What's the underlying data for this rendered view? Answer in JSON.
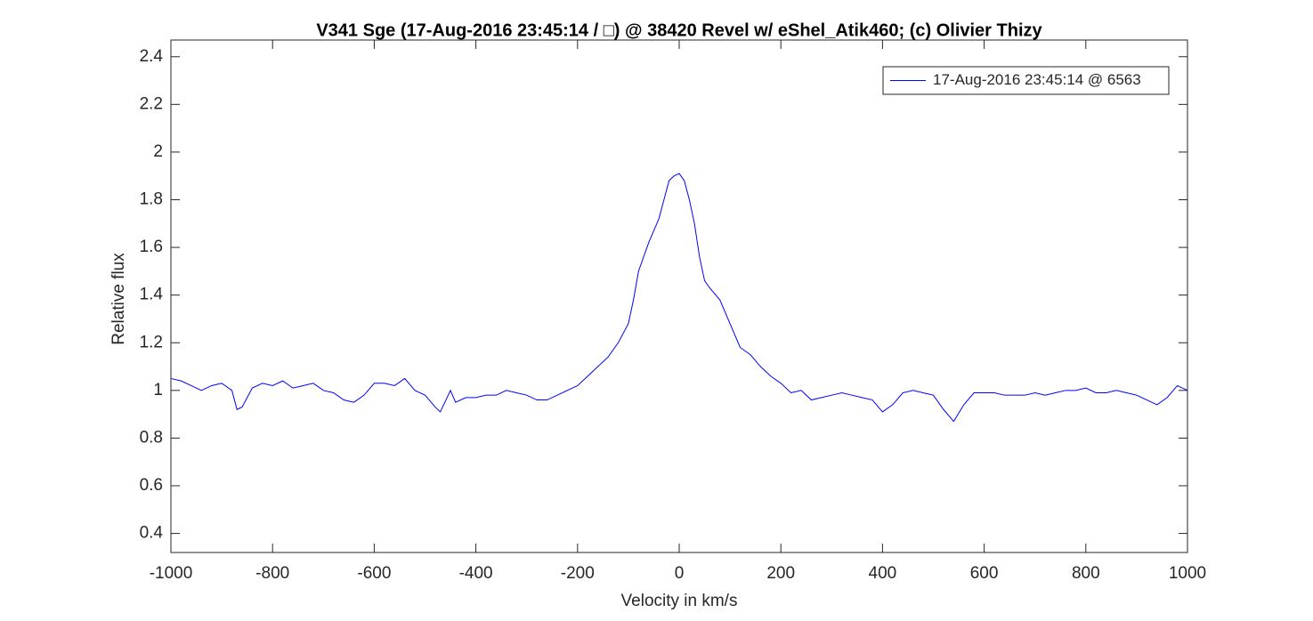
{
  "chart_data": {
    "type": "line",
    "title": "V341 Sge (17-Aug-2016 23:45:14 / □) @ 38420 Revel w/ eShel_Atik460; (c) Olivier Thizy",
    "x_label": "Velocity in km/s",
    "y_label": "Relative flux",
    "xlim": [
      -1000,
      1000
    ],
    "ylim": [
      0.32,
      2.47
    ],
    "xticks": [
      -1000,
      -800,
      -600,
      -400,
      -200,
      0,
      200,
      400,
      600,
      800,
      1000
    ],
    "yticks": [
      0.4,
      0.6,
      0.8,
      1,
      1.2,
      1.4,
      1.6,
      1.8,
      2,
      2.2,
      2.4
    ],
    "grid": false,
    "legend": "top-right",
    "x": [
      -1000,
      -980,
      -960,
      -940,
      -920,
      -900,
      -880,
      -870,
      -860,
      -840,
      -820,
      -800,
      -780,
      -760,
      -740,
      -720,
      -700,
      -680,
      -660,
      -640,
      -620,
      -600,
      -580,
      -560,
      -540,
      -520,
      -500,
      -480,
      -470,
      -450,
      -440,
      -420,
      -400,
      -380,
      -360,
      -340,
      -320,
      -300,
      -280,
      -260,
      -240,
      -220,
      -200,
      -180,
      -160,
      -140,
      -120,
      -100,
      -90,
      -80,
      -60,
      -40,
      -30,
      -20,
      -10,
      0,
      10,
      20,
      30,
      40,
      50,
      60,
      80,
      100,
      120,
      140,
      160,
      180,
      200,
      220,
      240,
      260,
      280,
      300,
      320,
      340,
      360,
      380,
      400,
      420,
      440,
      460,
      480,
      500,
      520,
      540,
      560,
      580,
      600,
      620,
      640,
      660,
      680,
      700,
      720,
      740,
      760,
      780,
      800,
      820,
      840,
      860,
      880,
      900,
      920,
      940,
      960,
      980,
      1000
    ],
    "series": [
      {
        "name": "17-Aug-2016 23:45:14 @ 6563",
        "color": "#0000ff",
        "values": [
          1.05,
          1.04,
          1.02,
          1.0,
          1.02,
          1.03,
          1.0,
          0.92,
          0.93,
          1.01,
          1.03,
          1.02,
          1.04,
          1.01,
          1.02,
          1.03,
          1.0,
          0.99,
          0.96,
          0.95,
          0.98,
          1.03,
          1.03,
          1.02,
          1.05,
          1.0,
          0.98,
          0.93,
          0.91,
          1.0,
          0.95,
          0.97,
          0.97,
          0.98,
          0.98,
          1.0,
          0.99,
          0.98,
          0.96,
          0.96,
          0.98,
          1.0,
          1.02,
          1.06,
          1.1,
          1.14,
          1.2,
          1.28,
          1.38,
          1.5,
          1.62,
          1.72,
          1.8,
          1.88,
          1.9,
          1.91,
          1.88,
          1.8,
          1.7,
          1.56,
          1.46,
          1.43,
          1.38,
          1.28,
          1.18,
          1.15,
          1.1,
          1.06,
          1.03,
          0.99,
          1.0,
          0.96,
          0.97,
          0.98,
          0.99,
          0.98,
          0.97,
          0.96,
          0.91,
          0.94,
          0.99,
          1.0,
          0.99,
          0.98,
          0.92,
          0.87,
          0.94,
          0.99,
          0.99,
          0.99,
          0.98,
          0.98,
          0.98,
          0.99,
          0.98,
          0.99,
          1.0,
          1.0,
          1.01,
          0.99,
          0.99,
          1.0,
          0.99,
          0.98,
          0.96,
          0.94,
          0.97,
          1.02,
          1.0
        ]
      }
    ]
  }
}
